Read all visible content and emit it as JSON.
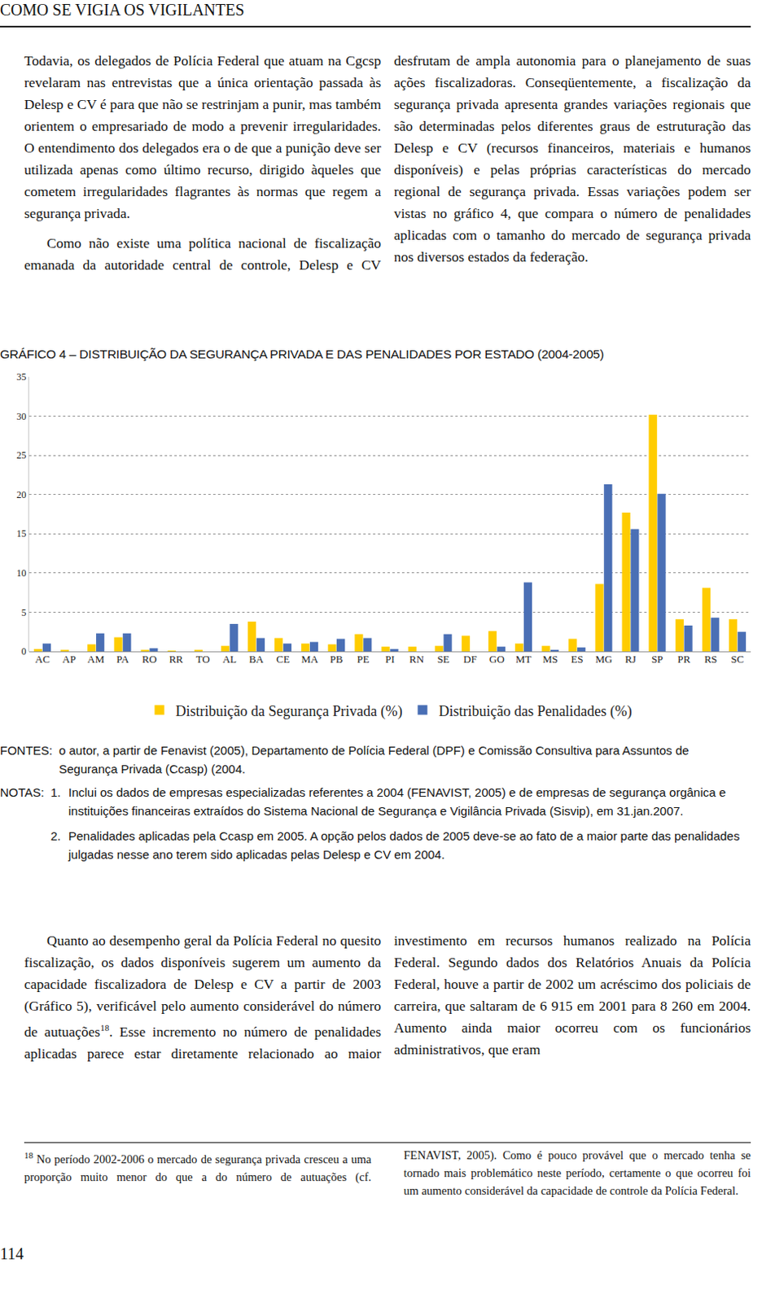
{
  "page": {
    "header": "COMO SE VIGIA OS VIGILANTES",
    "top_paragraphs": [
      "Todavia, os delegados de Polícia Federal que atuam na Cgcsp revelaram nas entrevistas que a única orientação passada às Delesp e CV é para que não se restrinjam a punir, mas também orientem o empresariado de modo a prevenir irregularidades. O entendimento dos delegados era o de que a punição deve ser utilizada apenas como último recurso, dirigido àqueles que cometem irregularidades flagrantes às normas que regem a segurança privada.",
      "Como não existe uma política nacional de fiscalização emanada da autoridade central de controle, Delesp e CV desfrutam de ampla autonomia para o planejamento de suas ações fiscalizadoras. Conseqüentemente, a fiscalização da segurança privada apresenta grandes variações regionais que são determinadas pelos diferentes graus de estruturação das Delesp e CV (recursos financeiros, materiais e humanos disponíveis) e pelas próprias características do mercado regional de segurança privada. Essas variações podem ser vistas no gráfico 4, que compara o número de penalidades aplicadas com o tamanho do mercado de segurança privada nos diversos estados da federação."
    ],
    "sources": {
      "label": "FONTES:",
      "text": "o autor, a partir de Fenavist (2005), Departamento de Polícia Federal (DPF) e Comissão Consultiva para Assuntos de Segurança Privada (Ccasp) (2004."
    },
    "notes": {
      "label": "NOTAS:",
      "items": [
        {
          "number": "1.",
          "text": "Inclui os dados de empresas especializadas referentes a 2004 (FENAVIST, 2005) e de empresas de segurança orgânica e instituições financeiras extraídos do Sistema Nacional de Segurança e Vigilância Privada (Sisvip), em 31.jan.2007."
        },
        {
          "number": "2.",
          "text": "Penalidades aplicadas pela Ccasp em 2005. A opção pelos dados de 2005 deve-se ao fato de a maior parte das penalidades julgadas nesse ano terem sido aplicadas pelas Delesp e CV em 2004."
        }
      ]
    },
    "bottom_paragraph": {
      "before_ref": "Quanto ao desempenho geral da Polícia Federal no quesito fiscalização, os dados disponíveis sugerem um aumento da capacidade fiscalizadora de Delesp e CV a partir de 2003 (Gráfico 5), verificável pelo aumento considerável do número de autuações",
      "ref": "18",
      "after_ref": ". Esse incremento no número de penalidades aplicadas parece estar diretamente relacionado ao maior investimento em recursos humanos realizado na Polícia Federal. Segundo dados dos Relatórios Anuais da Polícia Federal, houve a partir de 2002 um acréscimo dos policiais de carreira, que saltaram de 6 915 em 2001 para 8 260 em 2004. Aumento ainda maior ocorreu com os funcionários administrativos, que eram"
    },
    "footnote": {
      "number": "18",
      "text": "No período 2002-2006 o mercado de segurança privada cresceu a uma proporção muito menor do que a do número de autuações (cf. FENAVIST, 2005). Como é pouco provável que o mercado tenha se tornado mais problemático neste período, certamente o que ocorreu foi um aumento considerável da capacidade de controle da Polícia Federal."
    },
    "page_number": "114"
  },
  "chart_data": {
    "type": "bar",
    "title": "GRÁFICO 4 – DISTRIBUIÇÃO DA SEGURANÇA PRIVADA E DAS PENALIDADES POR ESTADO (2004-2005)",
    "categories": [
      "AC",
      "AP",
      "AM",
      "PA",
      "RO",
      "RR",
      "TO",
      "AL",
      "BA",
      "CE",
      "MA",
      "PB",
      "PE",
      "PI",
      "RN",
      "SE",
      "DF",
      "GO",
      "MT",
      "MS",
      "ES",
      "MG",
      "RJ",
      "SP",
      "PR",
      "RS",
      "SC"
    ],
    "series": [
      {
        "name": "Distribuição da Segurança Privada (%)",
        "color": "#FFCC00",
        "values": [
          0.3,
          0.2,
          0.9,
          1.8,
          0.2,
          0.1,
          0.2,
          0.7,
          3.8,
          1.7,
          1.0,
          0.9,
          2.2,
          0.6,
          0.6,
          0.7,
          2.0,
          2.6,
          1.0,
          0.7,
          1.6,
          8.6,
          17.7,
          30.2,
          4.1,
          8.1,
          4.1
        ]
      },
      {
        "name": "Distribuição das Penalidades (%)",
        "color": "#4A6FB5",
        "values": [
          1.0,
          0,
          2.3,
          2.3,
          0.4,
          0,
          0,
          3.5,
          1.7,
          1.0,
          1.2,
          1.6,
          1.7,
          0.3,
          0,
          2.2,
          0,
          0.6,
          8.8,
          0.2,
          0.5,
          21.3,
          15.6,
          20.1,
          3.3,
          4.3,
          2.5
        ]
      }
    ],
    "ylim": [
      0,
      35
    ],
    "yticks": [
      0,
      5,
      10,
      15,
      20,
      25,
      30,
      35
    ],
    "grid": true,
    "legend": "bottom"
  }
}
